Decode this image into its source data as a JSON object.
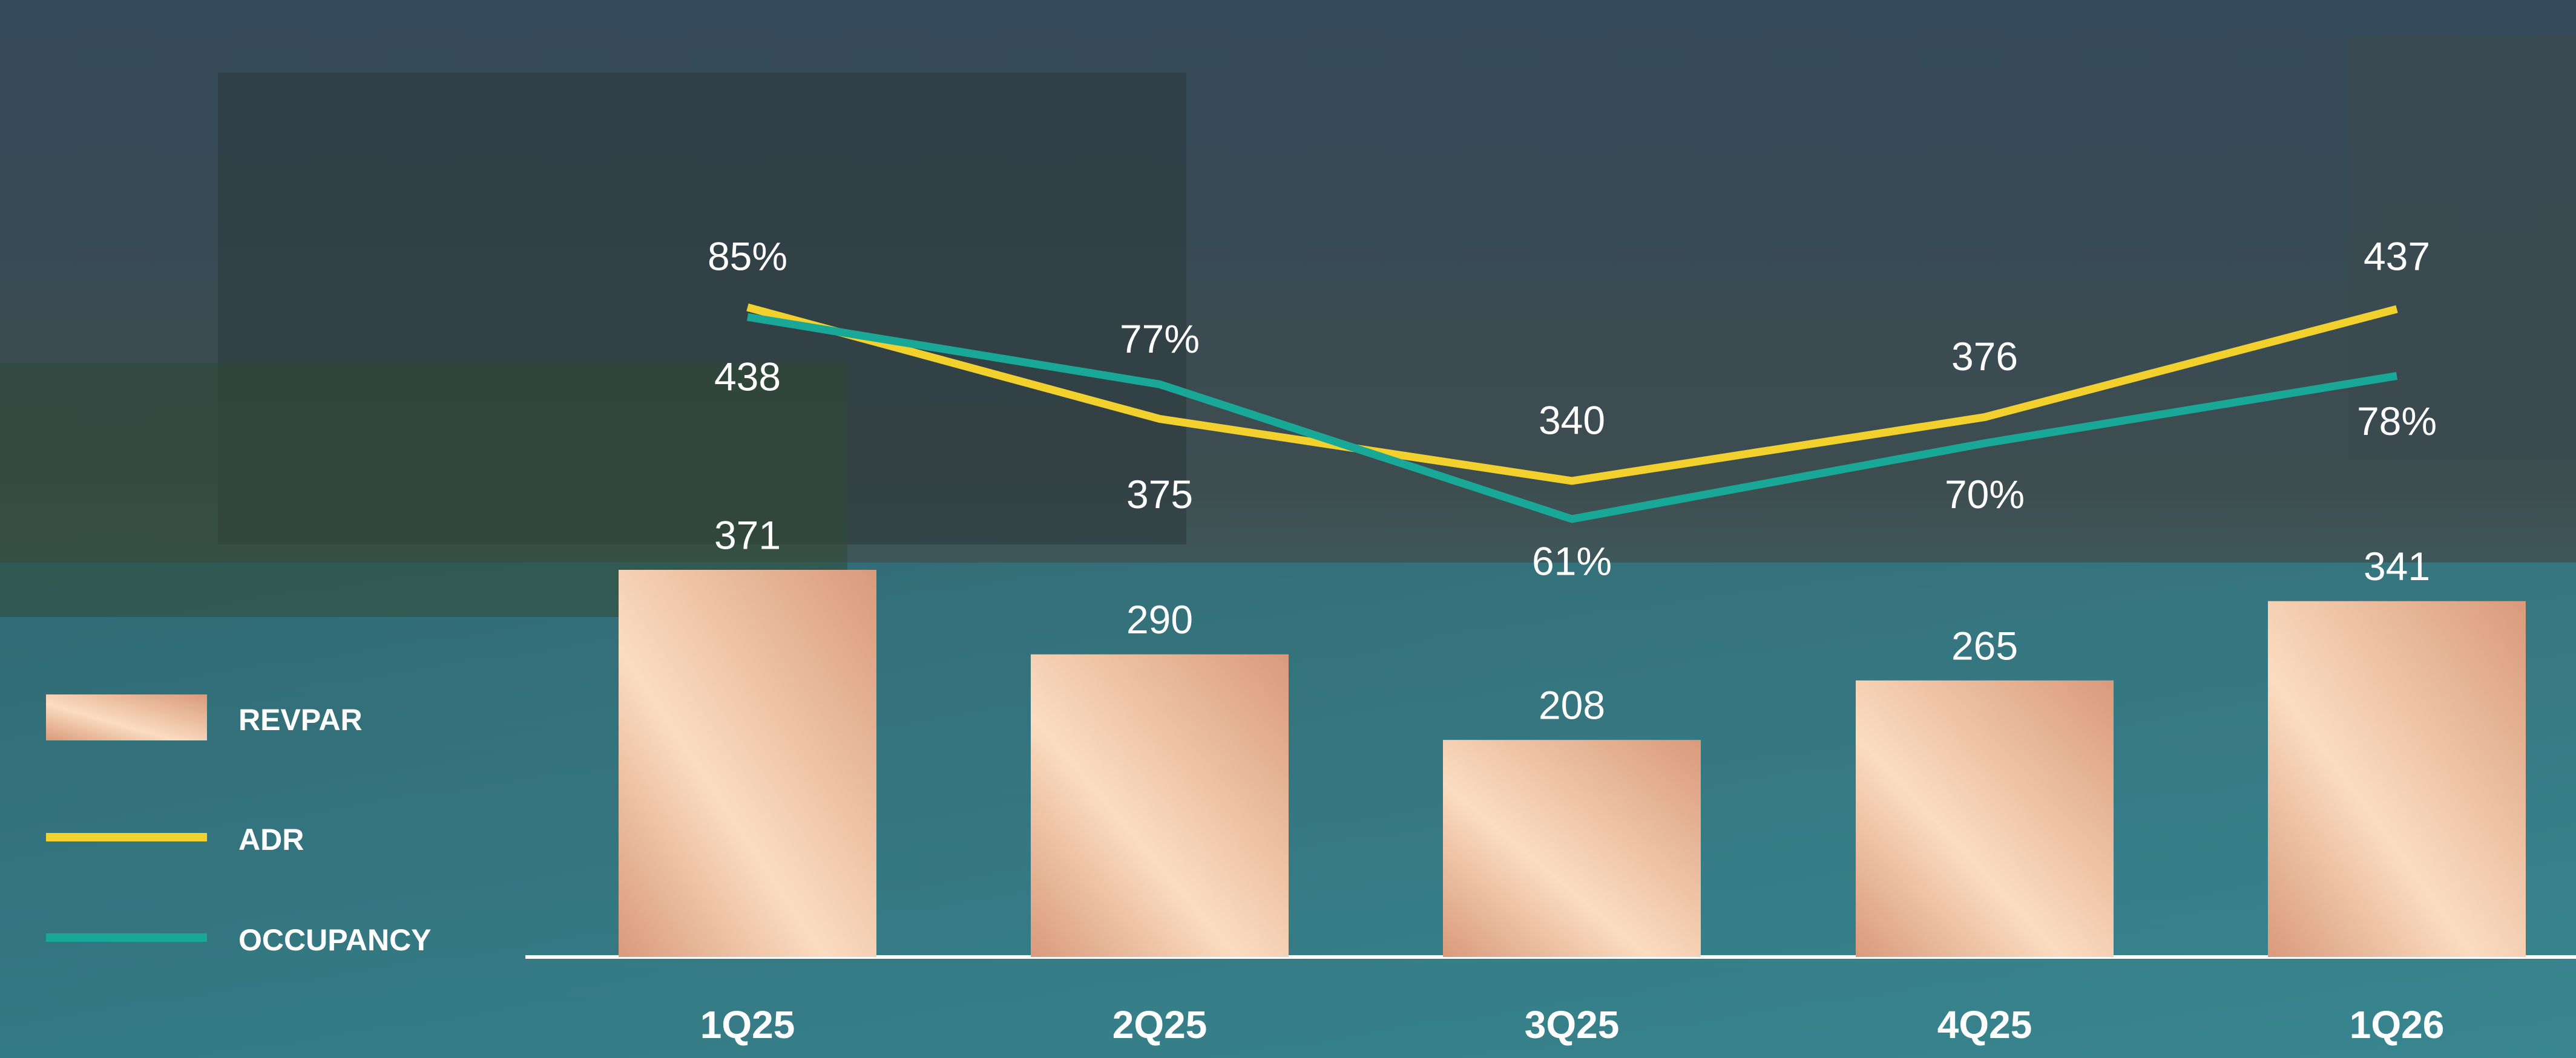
{
  "chart_data": {
    "type": "combo",
    "categories": [
      "1Q25",
      "2Q25",
      "3Q25",
      "4Q25",
      "1Q26"
    ],
    "series": [
      {
        "name": "REVPAR",
        "type": "bar",
        "color": "#d99a7b",
        "values": [
          371,
          290,
          208,
          265,
          341
        ]
      },
      {
        "name": "ADR",
        "type": "line",
        "color": "#f2d12e",
        "values": [
          438,
          375,
          340,
          376,
          437
        ]
      },
      {
        "name": "OCCUPANCY",
        "type": "line",
        "color": "#19a897",
        "values": [
          85,
          77,
          61,
          70,
          78
        ],
        "value_labels": [
          "85%",
          "77%",
          "61%",
          "70%",
          "78%"
        ]
      }
    ]
  }
}
